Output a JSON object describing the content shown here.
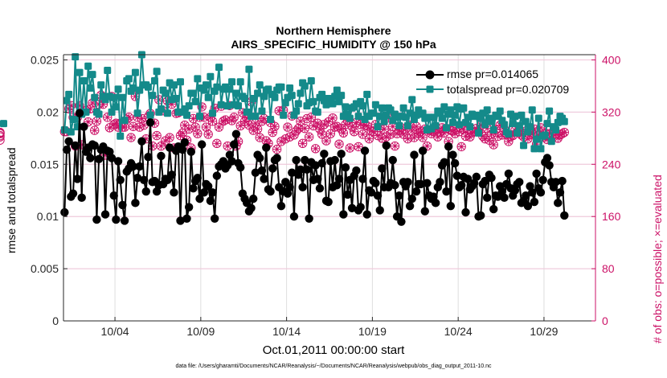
{
  "figure": {
    "title_line1": "Northern Hemisphere",
    "title_line2": "AIRS_SPECIFIC_HUMIDITY @ 150 hPa",
    "xlabel": "Oct.01,2011 00:00:00 start",
    "ylabel_left": "rmse and totalspread",
    "ylabel_right": "# of obs: o=possible; ×=evaluated",
    "footnote": "data file: /Users/gharamti/Documents/NCAR/Reanalysis/~/Documents/NCAR/Reanalysis/webpub/obs_diag_output_2011-10.nc"
  },
  "colors": {
    "rmse": "#000000",
    "totalspread": "#148a8a",
    "obs_count": "#cc1267",
    "grid": "#dedede"
  },
  "chart_data": {
    "type": "line",
    "title": "Northern Hemisphere AIRS_SPECIFIC_HUMIDITY @ 150 hPa",
    "xlabel": "Oct.01,2011 00:00:00 start",
    "ylabel": "rmse and totalspread",
    "ylabel_right": "# of obs: o=possible; ×=evaluated",
    "xlim": [
      "2011-10-01",
      "2011-11-01"
    ],
    "ylim": [
      0,
      0.0255
    ],
    "ylim_right": [
      0,
      408
    ],
    "xticks": [
      "10/04",
      "10/09",
      "10/14",
      "10/19",
      "10/24",
      "10/29"
    ],
    "yticks_left": [
      "0",
      "0.005",
      "0.01",
      "0.015",
      "0.02",
      "0.025"
    ],
    "yticks_right": [
      "0",
      "80",
      "160",
      "240",
      "320",
      "400"
    ],
    "grid": true,
    "legend_position": "top-right",
    "x_start": "2011-10-01 00:00",
    "x_step_hours": 3,
    "series": [
      {
        "name": "rmse pr=0.014065",
        "axis": "left",
        "values": [
          0.0104,
          0.0164,
          0.0172,
          0.0119,
          0.0122,
          0.0168,
          0.0136,
          0.0199,
          0.0118,
          0.0186,
          0.0162,
          0.0166,
          0.0156,
          0.0169,
          0.0168,
          0.0097,
          0.0155,
          0.0164,
          0.0167,
          0.0102,
          0.0163,
          0.0162,
          0.0156,
          0.012,
          0.0097,
          0.0153,
          0.0135,
          0.0111,
          0.0096,
          0.0143,
          0.0146,
          0.0151,
          0.0148,
          0.0113,
          0.0137,
          0.0148,
          0.0172,
          0.0135,
          0.0124,
          0.0157,
          0.019,
          0.0133,
          0.0134,
          0.0124,
          0.013,
          0.0158,
          0.0131,
          0.0136,
          0.0135,
          0.0166,
          0.014,
          0.0123,
          0.0163,
          0.0167,
          0.0096,
          0.0164,
          0.0171,
          0.0098,
          0.0109,
          0.0162,
          0.0127,
          0.0134,
          0.0137,
          0.0117,
          0.0169,
          0.0123,
          0.0131,
          0.0129,
          0.0115,
          0.0123,
          0.0098,
          0.0139,
          0.0148,
          0.015,
          0.0153,
          0.0146,
          0.0149,
          0.0159,
          0.0153,
          0.0169,
          0.0179,
          0.0151,
          0.0147,
          0.0122,
          0.0117,
          0.0113,
          0.0105,
          0.0108,
          0.0117,
          0.0142,
          0.0159,
          0.0156,
          0.0144,
          0.0136,
          0.0166,
          0.0126,
          0.0124,
          0.0146,
          0.0154,
          0.0156,
          0.0128,
          0.011,
          0.0124,
          0.0133,
          0.0122,
          0.0128,
          0.0142,
          0.01,
          0.0154,
          0.014,
          0.0145,
          0.0128,
          0.0154,
          0.0145,
          0.0098,
          0.0152,
          0.0135,
          0.0149,
          0.0136,
          0.0127,
          0.0151,
          0.016,
          0.0115,
          0.0114,
          0.0153,
          0.0128,
          0.0154,
          0.013,
          0.0136,
          0.016,
          0.0102,
          0.0147,
          0.0121,
          0.0135,
          0.0108,
          0.0139,
          0.0144,
          0.0106,
          0.0109,
          0.0136,
          0.0163,
          0.0102,
          0.0125,
          0.0123,
          0.0134,
          0.0132,
          0.012,
          0.0106,
          0.0146,
          0.0128,
          0.0168,
          0.0128,
          0.0132,
          0.0154,
          0.013,
          0.01,
          0.012,
          0.0095,
          0.0133,
          0.0129,
          0.0133,
          0.011,
          0.0117,
          0.0159,
          0.0124,
          0.0131,
          0.0131,
          0.0163,
          0.0105,
          0.0132,
          0.012,
          0.0117,
          0.0119,
          0.0113,
          0.0128,
          0.0133,
          0.0149,
          0.0152,
          0.0124,
          0.0167,
          0.011,
          0.0159,
          0.0151,
          0.0139,
          0.0128,
          0.013,
          0.0138,
          0.0104,
          0.0136,
          0.0126,
          0.0129,
          0.0132,
          0.0138,
          0.01,
          0.0101,
          0.0131,
          0.0134,
          0.0118,
          0.014,
          0.0137,
          0.0107,
          0.012,
          0.0119,
          0.0129,
          0.0124,
          0.0118,
          0.0131,
          0.0141,
          0.0127,
          0.012,
          0.0125,
          0.0131,
          0.0133,
          0.0113,
          0.0115,
          0.012,
          0.011,
          0.0129,
          0.0123,
          0.0114,
          0.0141,
          0.0127,
          0.0123,
          0.0135,
          0.0152,
          0.0156,
          0.0149,
          0.0133,
          0.0128,
          0.0133,
          0.0113,
          0.0123,
          0.0134,
          0.0101
        ]
      },
      {
        "name": "totalspread pr=0.020709",
        "axis": "left",
        "values": [
          0.0183,
          0.0211,
          0.0217,
          0.0181,
          0.0193,
          0.0253,
          0.0186,
          0.0238,
          0.0198,
          0.023,
          0.02,
          0.0244,
          0.0223,
          0.0236,
          0.0214,
          0.02,
          0.0198,
          0.0226,
          0.0215,
          0.0212,
          0.024,
          0.0215,
          0.02,
          0.0214,
          0.0205,
          0.0222,
          0.0177,
          0.0214,
          0.0192,
          0.023,
          0.0232,
          0.022,
          0.0223,
          0.0238,
          0.0199,
          0.0221,
          0.0255,
          0.0226,
          0.0226,
          0.0224,
          0.0197,
          0.0216,
          0.023,
          0.0239,
          0.02,
          0.0203,
          0.0221,
          0.0218,
          0.0199,
          0.0228,
          0.0212,
          0.0226,
          0.0213,
          0.02,
          0.0229,
          0.02,
          0.0203,
          0.0197,
          0.0206,
          0.0218,
          0.0218,
          0.021,
          0.0232,
          0.0196,
          0.0223,
          0.0221,
          0.0226,
          0.0214,
          0.0234,
          0.0199,
          0.022,
          0.0224,
          0.0243,
          0.0207,
          0.0222,
          0.0224,
          0.0206,
          0.0222,
          0.0229,
          0.0207,
          0.0218,
          0.0206,
          0.0229,
          0.0215,
          0.0213,
          0.02,
          0.0241,
          0.0196,
          0.0213,
          0.0196,
          0.0218,
          0.0226,
          0.0201,
          0.0215,
          0.0221,
          0.0222,
          0.0193,
          0.0217,
          0.0214,
          0.0221,
          0.0224,
          0.0224,
          0.0197,
          0.0209,
          0.0214,
          0.0223,
          0.0216,
          0.0197,
          0.0201,
          0.0208,
          0.0218,
          0.0228,
          0.0225,
          0.0206,
          0.0209,
          0.023,
          0.021,
          0.0201,
          0.02,
          0.0214,
          0.0217,
          0.0211,
          0.0207,
          0.0213,
          0.0209,
          0.0208,
          0.0215,
          0.0221,
          0.021,
          0.0216,
          0.0196,
          0.0205,
          0.0198,
          0.0194,
          0.0204,
          0.0205,
          0.0208,
          0.0196,
          0.021,
          0.0206,
          0.0193,
          0.0217,
          0.0196,
          0.0199,
          0.0199,
          0.0207,
          0.0186,
          0.0196,
          0.0204,
          0.0191,
          0.0197,
          0.0204,
          0.0202,
          0.0192,
          0.0198,
          0.0195,
          0.0187,
          0.0196,
          0.0204,
          0.0195,
          0.0187,
          0.0199,
          0.0212,
          0.0193,
          0.0197,
          0.0202,
          0.0198,
          0.0199,
          0.0194,
          0.0183,
          0.0195,
          0.0184,
          0.0195,
          0.0187,
          0.0201,
          0.0199,
          0.0194,
          0.0205,
          0.0185,
          0.0198,
          0.0202,
          0.019,
          0.0197,
          0.0205,
          0.0188,
          0.0203,
          0.0204,
          0.019,
          0.0195,
          0.0186,
          0.0198,
          0.0196,
          0.0197,
          0.018,
          0.0194,
          0.0199,
          0.0188,
          0.0202,
          0.0194,
          0.0191,
          0.0183,
          0.0197,
          0.0196,
          0.0201,
          0.0192,
          0.0188,
          0.0181,
          0.0179,
          0.0198,
          0.0189,
          0.0196,
          0.018,
          0.0187,
          0.0197,
          0.0168,
          0.0191,
          0.0181,
          0.0186,
          0.0202,
          0.0165,
          0.0174,
          0.0194,
          0.0165,
          0.0177,
          0.0178,
          0.0189,
          0.0201,
          0.0172,
          0.0186,
          0.0183,
          0.019,
          0.0196,
          0.0194,
          0.0191,
          0.0189
        ]
      },
      {
        "name": "possible",
        "axis": "right",
        "marker": "o",
        "values": [
          290,
          290,
          325,
          330,
          312,
          268,
          312,
          330,
          270,
          322,
          322,
          305,
          325,
          334,
          292,
          306,
          332,
          346,
          332,
          254,
          312,
          296,
          344,
          301,
          303,
          297,
          303,
          297,
          297,
          309,
          312,
          281,
          298,
          344,
          312,
          297,
          310,
          300,
          279,
          313,
          318,
          268,
          303,
          284,
          339,
          268,
          322,
          276,
          337,
          281,
          332,
          265,
          318,
          319,
          284,
          288,
          300,
          277,
          294,
          265,
          310,
          297,
          287,
          312,
          328,
          312,
          297,
          286,
          312,
          306,
          326,
          272,
          297,
          329,
          306,
          308,
          268,
          330,
          307,
          312,
          268,
          275,
          299,
          319,
          306,
          311,
          300,
          336,
          292,
          303,
          294,
          281,
          306,
          310,
          276,
          272,
          304,
          289,
          298,
          263,
          322,
          275,
          323,
          279,
          297,
          282,
          314,
          285,
          291,
          295,
          306,
          272,
          295,
          310,
          282,
          312,
          299,
          264,
          303,
          294,
          286,
          301,
          276,
          305,
          287,
          311,
          297,
          298,
          271,
          294,
          288,
          301,
          307,
          265,
          298,
          290,
          304,
          267,
          301,
          286,
          300,
          299,
          279,
          291,
          290,
          301,
          284,
          296,
          280,
          294,
          282,
          311,
          286,
          298,
          268,
          287,
          292,
          296,
          286,
          294,
          279,
          300,
          291,
          281,
          298,
          288,
          290,
          281,
          294,
          268,
          292,
          287,
          290,
          294,
          282,
          289,
          296,
          288,
          295,
          275,
          292,
          291,
          287,
          297,
          290,
          267,
          294,
          283,
          294,
          282,
          288,
          290,
          295,
          290,
          300,
          283,
          279,
          295,
          277,
          286,
          270,
          293,
          283,
          300,
          285,
          294,
          286,
          275,
          283,
          284,
          292,
          289,
          293,
          285,
          282,
          291,
          279,
          285,
          287,
          294,
          271,
          285,
          296,
          282,
          288,
          278,
          287,
          281,
          291,
          286,
          280,
          285,
          287,
          289,
          288,
          282,
          284,
          287,
          289,
          277
        ]
      },
      {
        "name": "evaluated",
        "axis": "right",
        "marker": "x",
        "values": [
          290,
          290,
          325,
          330,
          312,
          268,
          312,
          330,
          270,
          322,
          322,
          305,
          325,
          334,
          292,
          306,
          332,
          346,
          332,
          254,
          312,
          296,
          344,
          301,
          303,
          297,
          303,
          297,
          297,
          309,
          312,
          281,
          298,
          344,
          312,
          297,
          310,
          300,
          279,
          313,
          318,
          268,
          303,
          284,
          339,
          268,
          322,
          276,
          337,
          281,
          332,
          265,
          318,
          319,
          284,
          288,
          300,
          277,
          294,
          265,
          310,
          297,
          287,
          312,
          328,
          312,
          297,
          286,
          312,
          306,
          326,
          272,
          297,
          329,
          306,
          308,
          268,
          330,
          307,
          312,
          268,
          275,
          299,
          319,
          306,
          311,
          300,
          336,
          292,
          303,
          294,
          281,
          306,
          310,
          276,
          272,
          304,
          289,
          298,
          263,
          322,
          275,
          323,
          279,
          297,
          282,
          314,
          285,
          291,
          295,
          306,
          272,
          295,
          310,
          282,
          312,
          299,
          264,
          303,
          294,
          286,
          301,
          276,
          305,
          287,
          311,
          297,
          298,
          271,
          294,
          288,
          301,
          307,
          265,
          298,
          290,
          304,
          267,
          301,
          286,
          300,
          299,
          279,
          291,
          290,
          301,
          284,
          296,
          280,
          294,
          282,
          311,
          286,
          298,
          268,
          287,
          292,
          296,
          286,
          294,
          279,
          300,
          291,
          281,
          298,
          288,
          290,
          281,
          294,
          268,
          292,
          287,
          290,
          294,
          282,
          289,
          296,
          288,
          295,
          275,
          292,
          291,
          287,
          297,
          290,
          267,
          294,
          283,
          294,
          282,
          288,
          290,
          295,
          290,
          300,
          283,
          279,
          295,
          277,
          286,
          270,
          293,
          283,
          300,
          285,
          294,
          286,
          275,
          283,
          284,
          292,
          289,
          293,
          285,
          282,
          291,
          279,
          285,
          287,
          294,
          271,
          285,
          296,
          282,
          288,
          278,
          287,
          281,
          291,
          286,
          280,
          285,
          287,
          289,
          288,
          282,
          284,
          287,
          289,
          277
        ]
      }
    ]
  }
}
